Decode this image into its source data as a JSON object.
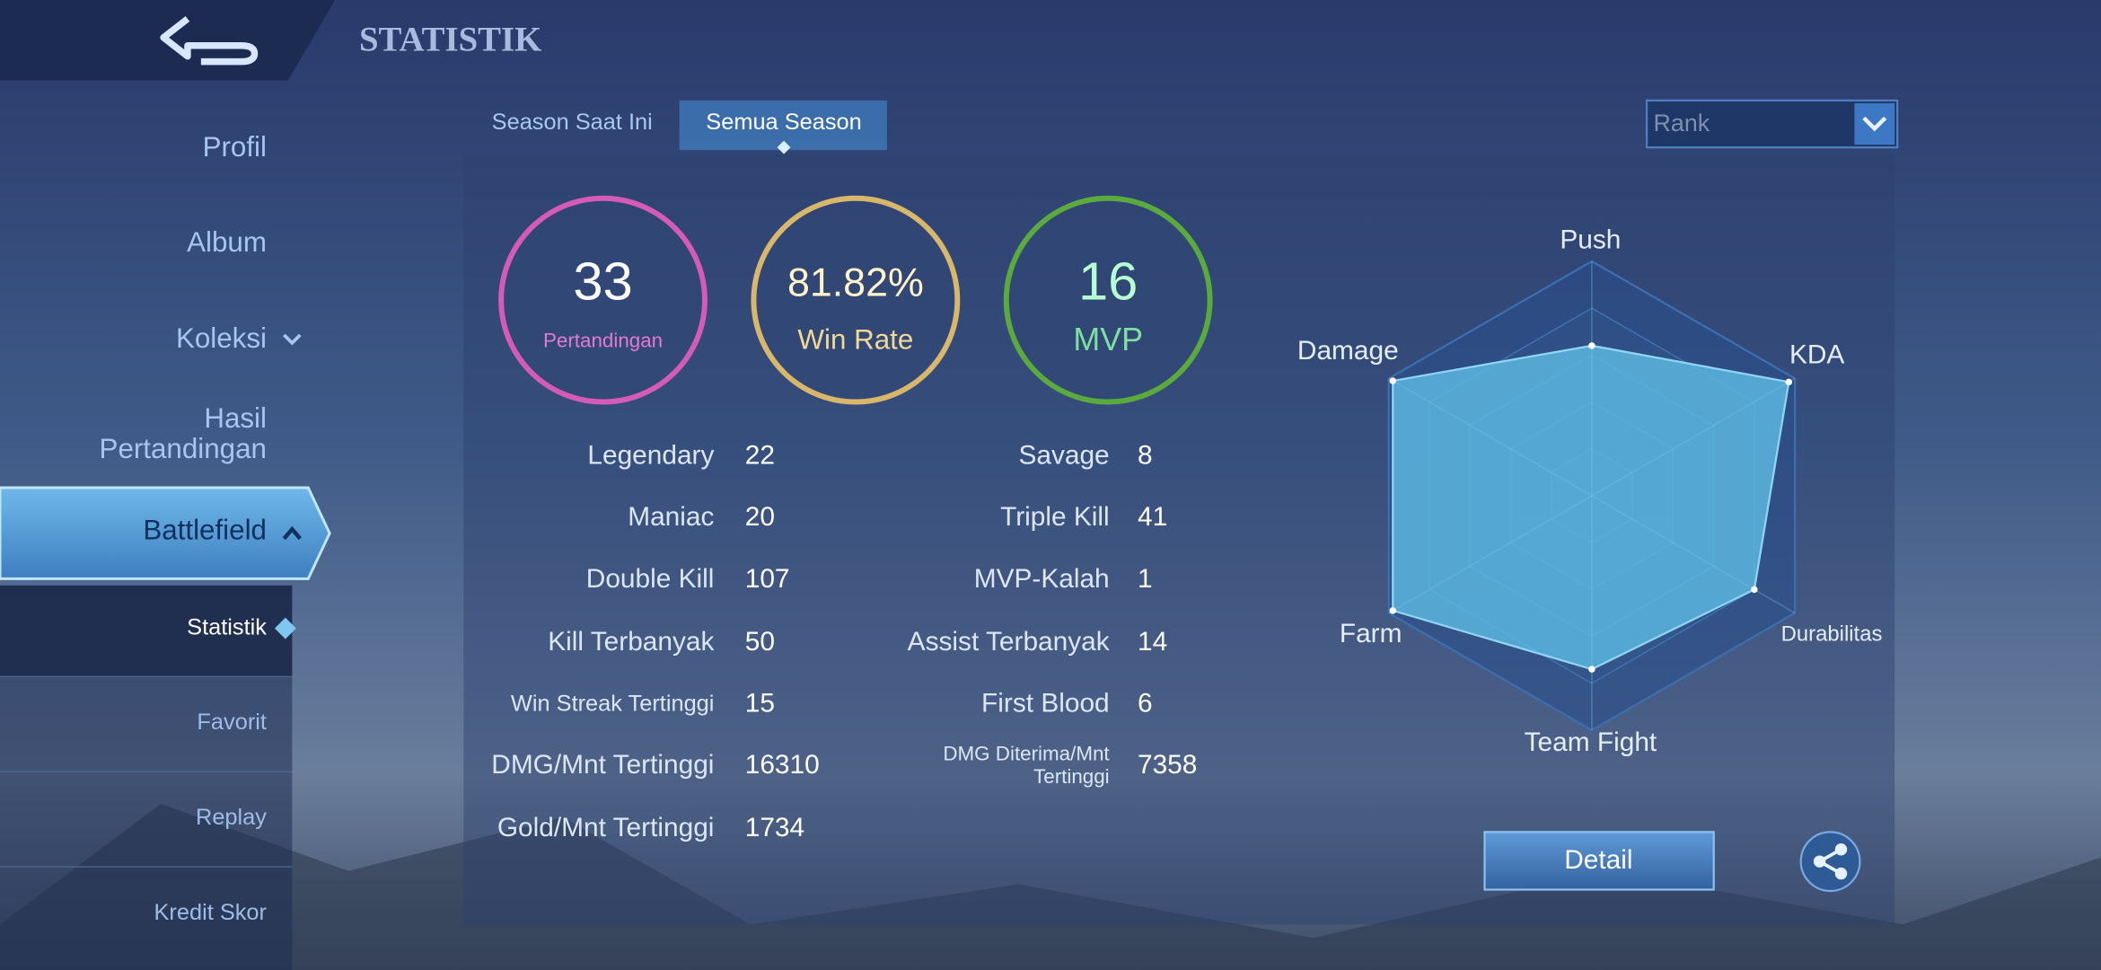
{
  "header": {
    "title": "STATISTIK"
  },
  "nav": {
    "items": [
      "Profil",
      "Album",
      "Koleksi",
      [
        "Hasil",
        "Pertandingan"
      ],
      "Battlefield"
    ],
    "sub_items": [
      "Statistik",
      "Favorit",
      "Replay",
      "Kredit Skor"
    ]
  },
  "tabs": [
    "Season Saat Ini",
    "Semua Season"
  ],
  "filter": "Rank",
  "summary": [
    {
      "value": 33,
      "label": "Pertandingan"
    },
    {
      "value": "81.82%",
      "label": "Win Rate"
    },
    {
      "value": 16,
      "label": "MVP"
    }
  ],
  "stats_left": [
    {
      "label": "Legendary",
      "value": 22
    },
    {
      "label": "Maniac",
      "value": 20
    },
    {
      "label": "Double Kill",
      "value": 107
    },
    {
      "label": "Kill Terbanyak",
      "value": 50
    },
    {
      "label": "Win Streak Tertinggi",
      "value": 15
    },
    {
      "label": "DMG/Mnt Tertinggi",
      "value": 16310
    },
    {
      "label": "Gold/Mnt Tertinggi",
      "value": 1734
    }
  ],
  "stats_right": [
    {
      "label": "Savage",
      "value": 8
    },
    {
      "label": "Triple Kill",
      "value": 41
    },
    {
      "label": "MVP-Kalah",
      "value": 1
    },
    {
      "label": "Assist Terbanyak",
      "value": 14
    },
    {
      "label": "First Blood",
      "value": 6
    },
    {
      "label": [
        "DMG Diterima/Mnt",
        "Tertinggi"
      ],
      "value": 7358
    }
  ],
  "radar": {
    "axes": [
      "Push",
      "KDA",
      "Durabilitas",
      "Team Fight",
      "Farm",
      "Damage"
    ],
    "values": [
      64,
      97,
      80,
      74,
      98,
      98
    ]
  },
  "actions": {
    "detail": "Detail"
  }
}
